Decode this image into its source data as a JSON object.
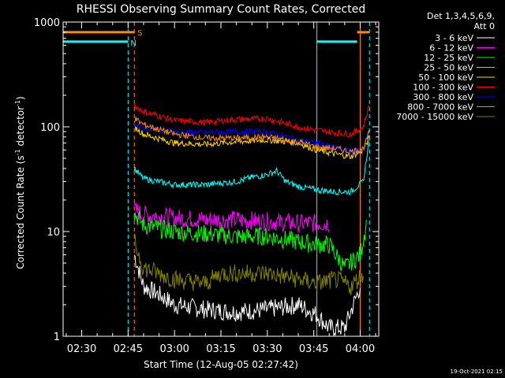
{
  "chart_data": {
    "type": "line",
    "title": "RHESSI Observing Summary Count Rates, Corrected",
    "xlabel": "Start Time (12-Aug-05 02:27:42)",
    "ylabel_main": "Corrected Count Rate (s",
    "ylabel_sup1": "-1",
    "ylabel_mid": " detector",
    "ylabel_sup2": "-1",
    "ylabel_end": ")",
    "ylabel": "Corrected Count Rate (s-1 detector-1)",
    "yscale": "log",
    "ylim": [
      1,
      1000
    ],
    "xlim": [
      "02:24",
      "04:06"
    ],
    "x_tick_labels": [
      "02:30",
      "02:45",
      "03:00",
      "03:15",
      "03:30",
      "03:45",
      "04:00"
    ],
    "y_tick_labels": [
      "1",
      "10",
      "100",
      "1000"
    ],
    "legend_header": [
      "Det 1,3,4,5,6,9,",
      "Att 0"
    ],
    "legend_position": "right",
    "footer_date": "19-Oct-2021 02:15",
    "annotations": [
      "S",
      "N"
    ],
    "bars": [
      {
        "name": "S",
        "color": "#ff8c00",
        "level": 800,
        "segments": [
          [
            "02:24",
            "02:47"
          ],
          [
            "03:59",
            "04:03"
          ]
        ]
      },
      {
        "name": "N",
        "color": "#00ffff",
        "level": 650,
        "segments": [
          [
            "02:24",
            "02:45"
          ],
          [
            "03:46",
            "03:59"
          ]
        ]
      }
    ],
    "vlines": [
      {
        "x": "02:24",
        "color": "#00ffff",
        "style": "solid"
      },
      {
        "x": "02:45",
        "color": "#00ffff",
        "style": "dashed"
      },
      {
        "x": "02:47",
        "color": "#ff8c00",
        "style": "dashed"
      },
      {
        "x": "03:46",
        "color": "#00ffff",
        "style": "solid"
      },
      {
        "x": "04:00",
        "color": "#ff8c00",
        "style": "solid"
      },
      {
        "x": "04:03",
        "color": "#00ffff",
        "style": "dashed"
      }
    ],
    "series": [
      {
        "name": "3 - 6 keV",
        "color": "#ffffff",
        "points": [
          [
            "02:47",
            6
          ],
          [
            "02:50",
            3
          ],
          [
            "02:55",
            2.5
          ],
          [
            "03:00",
            2
          ],
          [
            "03:10",
            1.8
          ],
          [
            "03:20",
            1.7
          ],
          [
            "03:30",
            1.8
          ],
          [
            "03:40",
            2
          ],
          [
            "03:46",
            1.6
          ],
          [
            "03:50",
            1.2
          ],
          [
            "03:55",
            1.2
          ],
          [
            "04:00",
            3
          ]
        ]
      },
      {
        "name": "6 - 12 keV",
        "color": "#ff00ff",
        "points": [
          [
            "02:47",
            16
          ],
          [
            "02:50",
            14.5
          ],
          [
            "03:00",
            13.5
          ],
          [
            "03:10",
            13
          ],
          [
            "03:20",
            13
          ],
          [
            "03:30",
            12.5
          ],
          [
            "03:40",
            12
          ],
          [
            "03:46",
            12
          ],
          [
            "03:50",
            12
          ]
        ]
      },
      {
        "name": "12 - 25 keV",
        "color": "#00ff00",
        "points": [
          [
            "02:47",
            15
          ],
          [
            "02:50",
            11.5
          ],
          [
            "03:00",
            10
          ],
          [
            "03:10",
            9.5
          ],
          [
            "03:20",
            9
          ],
          [
            "03:30",
            9
          ],
          [
            "03:40",
            8
          ],
          [
            "03:46",
            7.5
          ],
          [
            "03:50",
            7.5
          ],
          [
            "03:55",
            4.5
          ],
          [
            "04:00",
            6
          ],
          [
            "04:02",
            12
          ]
        ]
      },
      {
        "name": "25 - 50 keV",
        "color": "#00ffff",
        "points": [
          [
            "02:47",
            40
          ],
          [
            "02:50",
            32
          ],
          [
            "03:00",
            28
          ],
          [
            "03:10",
            28
          ],
          [
            "03:20",
            30
          ],
          [
            "03:25",
            33
          ],
          [
            "03:30",
            35
          ],
          [
            "03:33",
            38
          ],
          [
            "03:36",
            30
          ],
          [
            "03:40",
            27
          ],
          [
            "03:46",
            25
          ],
          [
            "03:52",
            24
          ],
          [
            "03:57",
            24
          ],
          [
            "04:01",
            30
          ],
          [
            "04:03",
            80
          ]
        ]
      },
      {
        "name": "50 - 100 keV",
        "color": "#ffd700",
        "points": [
          [
            "02:47",
            100
          ],
          [
            "02:50",
            85
          ],
          [
            "03:00",
            70
          ],
          [
            "03:10",
            68
          ],
          [
            "03:20",
            72
          ],
          [
            "03:30",
            75
          ],
          [
            "03:40",
            70
          ],
          [
            "03:46",
            60
          ],
          [
            "03:52",
            55
          ],
          [
            "03:57",
            52
          ],
          [
            "04:01",
            60
          ],
          [
            "04:03",
            80
          ]
        ]
      },
      {
        "name": "100 - 300 keV",
        "color": "#ff0000",
        "points": [
          [
            "02:47",
            160
          ],
          [
            "02:50",
            140
          ],
          [
            "03:00",
            115
          ],
          [
            "03:10",
            110
          ],
          [
            "03:20",
            118
          ],
          [
            "03:30",
            120
          ],
          [
            "03:40",
            100
          ],
          [
            "03:46",
            93
          ],
          [
            "03:52",
            88
          ],
          [
            "03:57",
            85
          ],
          [
            "04:01",
            100
          ],
          [
            "04:03",
            165
          ]
        ]
      },
      {
        "name": "300 - 800 keV",
        "color": "#0000ff",
        "points": [
          [
            "02:47",
            105
          ],
          [
            "02:50",
            100
          ],
          [
            "03:00",
            90
          ],
          [
            "03:10",
            88
          ],
          [
            "03:20",
            90
          ],
          [
            "03:30",
            90
          ],
          [
            "03:40",
            75
          ],
          [
            "03:46",
            70
          ],
          [
            "03:52",
            63
          ],
          [
            "03:57",
            58
          ],
          [
            "04:01",
            62
          ],
          [
            "04:03",
            90
          ]
        ]
      },
      {
        "name": "800 - 7000 keV",
        "color": "#ff8c00",
        "points": [
          [
            "02:47",
            120
          ],
          [
            "02:50",
            105
          ],
          [
            "03:00",
            85
          ],
          [
            "03:10",
            78
          ],
          [
            "03:20",
            78
          ],
          [
            "03:30",
            80
          ],
          [
            "03:40",
            72
          ],
          [
            "03:46",
            64
          ],
          [
            "03:52",
            62
          ],
          [
            "03:57",
            58
          ],
          [
            "04:01",
            62
          ],
          [
            "04:03",
            90
          ]
        ]
      },
      {
        "name": "7000 - 15000 keV",
        "color": "#808000",
        "points": [
          [
            "02:47",
            8
          ],
          [
            "02:50",
            4.5
          ],
          [
            "03:00",
            3.5
          ],
          [
            "03:10",
            3.2
          ],
          [
            "03:15",
            4
          ],
          [
            "03:20",
            4
          ],
          [
            "03:30",
            4
          ],
          [
            "03:40",
            3.5
          ],
          [
            "03:46",
            3.2
          ],
          [
            "03:52",
            3.5
          ],
          [
            "03:57",
            3
          ],
          [
            "04:01",
            4
          ]
        ]
      }
    ]
  }
}
